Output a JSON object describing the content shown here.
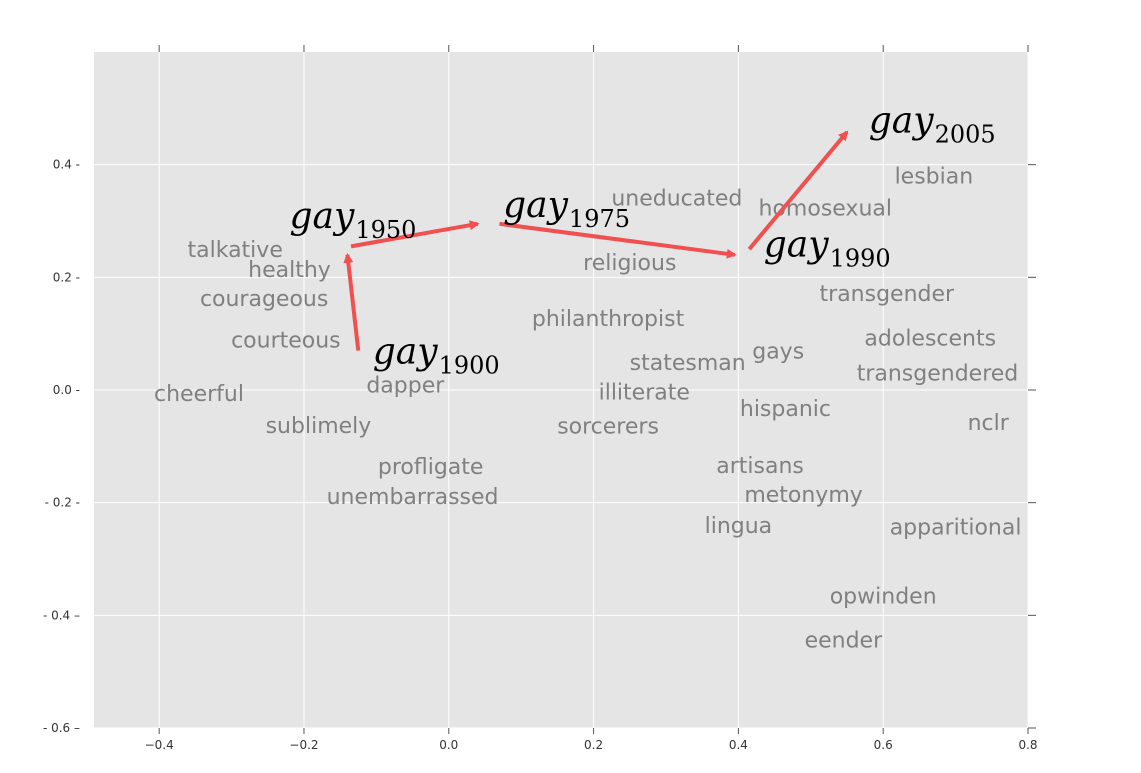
{
  "chart_data": {
    "type": "scatter",
    "title": "",
    "xlabel": "",
    "ylabel": "",
    "xlim": [
      -0.49,
      0.8
    ],
    "ylim": [
      -0.6,
      0.6
    ],
    "x_ticks": [
      {
        "value": -0.4,
        "label": "−0.4"
      },
      {
        "value": -0.2,
        "label": "−0.2"
      },
      {
        "value": 0.0,
        "label": "0.0"
      },
      {
        "value": 0.2,
        "label": "0.2"
      },
      {
        "value": 0.4,
        "label": "0.4"
      },
      {
        "value": 0.6,
        "label": "0.6"
      },
      {
        "value": 0.8,
        "label": "0.8"
      }
    ],
    "y_ticks": [
      {
        "value": 0.4,
        "label": "0.4 -"
      },
      {
        "value": 0.2,
        "label": "0.2 -"
      },
      {
        "value": 0.0,
        "label": "0.0 -"
      },
      {
        "value": -0.2,
        "label": "- 0.2 -"
      },
      {
        "value": -0.4,
        "label": "- 0.4 –"
      },
      {
        "value": -0.6,
        "label": "- 0.6 –"
      }
    ],
    "grid": true,
    "background_color": "#e5e5e5",
    "grid_color": "#ffffff",
    "arrow_color": "#f05050",
    "word_color": "#808080",
    "words": [
      {
        "text": "talkative",
        "x": -0.295,
        "y": 0.25
      },
      {
        "text": "healthy",
        "x": -0.22,
        "y": 0.215
      },
      {
        "text": "courageous",
        "x": -0.255,
        "y": 0.163
      },
      {
        "text": "courteous",
        "x": -0.225,
        "y": 0.09
      },
      {
        "text": "cheerful",
        "x": -0.345,
        "y": -0.005
      },
      {
        "text": "sublimely",
        "x": -0.18,
        "y": -0.062
      },
      {
        "text": "dapper",
        "x": -0.06,
        "y": 0.01
      },
      {
        "text": "profligate",
        "x": -0.025,
        "y": -0.135
      },
      {
        "text": "unembarrassed",
        "x": -0.05,
        "y": -0.188
      },
      {
        "text": "uneducated",
        "x": 0.315,
        "y": 0.342
      },
      {
        "text": "homosexual",
        "x": 0.52,
        "y": 0.324
      },
      {
        "text": "lesbian",
        "x": 0.67,
        "y": 0.381
      },
      {
        "text": "religious",
        "x": 0.25,
        "y": 0.227
      },
      {
        "text": "transgender",
        "x": 0.605,
        "y": 0.172
      },
      {
        "text": "philanthropist",
        "x": 0.22,
        "y": 0.128
      },
      {
        "text": "adolescents",
        "x": 0.665,
        "y": 0.093
      },
      {
        "text": "statesman",
        "x": 0.33,
        "y": 0.05
      },
      {
        "text": "gays",
        "x": 0.455,
        "y": 0.07
      },
      {
        "text": "transgendered",
        "x": 0.675,
        "y": 0.031
      },
      {
        "text": "illiterate",
        "x": 0.27,
        "y": -0.003
      },
      {
        "text": "hispanic",
        "x": 0.465,
        "y": -0.032
      },
      {
        "text": "nclr",
        "x": 0.745,
        "y": -0.057
      },
      {
        "text": "sorcerers",
        "x": 0.22,
        "y": -0.063
      },
      {
        "text": "artisans",
        "x": 0.43,
        "y": -0.133
      },
      {
        "text": "metonymy",
        "x": 0.49,
        "y": -0.185
      },
      {
        "text": "lingua",
        "x": 0.4,
        "y": -0.24
      },
      {
        "text": "apparitional",
        "x": 0.7,
        "y": -0.242
      },
      {
        "text": "opwinden",
        "x": 0.6,
        "y": -0.365
      },
      {
        "text": "eender",
        "x": 0.545,
        "y": -0.443
      }
    ],
    "gay_labels": [
      {
        "main": "gay",
        "sub": "1900",
        "x": -0.105,
        "y": 0.065
      },
      {
        "main": "gay",
        "sub": "1950",
        "x": -0.22,
        "y": 0.305
      },
      {
        "main": "gay",
        "sub": "1975",
        "x": 0.075,
        "y": 0.325
      },
      {
        "main": "gay",
        "sub": "1990",
        "x": 0.435,
        "y": 0.255
      },
      {
        "main": "gay",
        "sub": "2005",
        "x": 0.58,
        "y": 0.475
      }
    ],
    "arrows": [
      {
        "x1": -0.125,
        "y1": 0.07,
        "x2": -0.14,
        "y2": 0.24
      },
      {
        "x1": -0.135,
        "y1": 0.255,
        "x2": 0.04,
        "y2": 0.295
      },
      {
        "x1": 0.07,
        "y1": 0.295,
        "x2": 0.395,
        "y2": 0.24
      },
      {
        "x1": 0.415,
        "y1": 0.25,
        "x2": 0.55,
        "y2": 0.458
      }
    ]
  }
}
